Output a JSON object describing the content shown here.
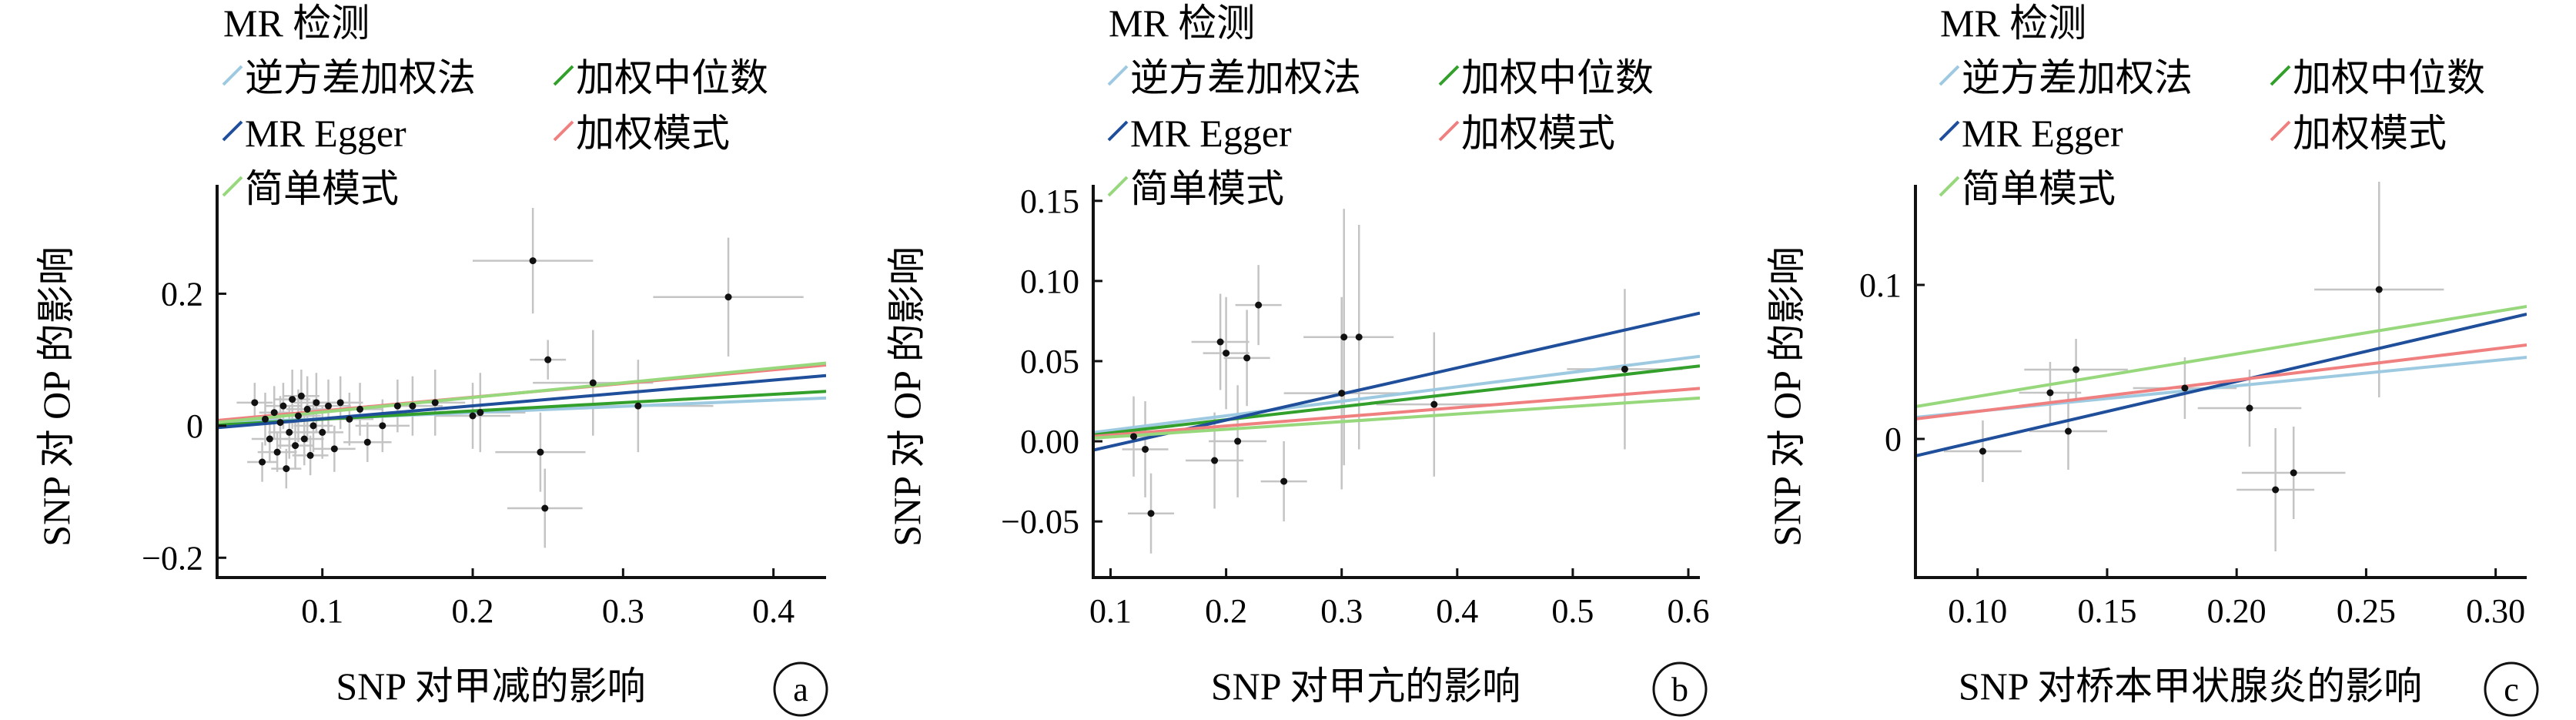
{
  "chart_data": [
    {
      "panel": "a",
      "type": "scatter",
      "xlabel": "SNP 对甲减的影响",
      "ylabel": "SNP 对 OP 的影响",
      "xlim": [
        0.03,
        0.435
      ],
      "ylim": [
        -0.23,
        0.365
      ],
      "xticks": [
        0.1,
        0.2,
        0.3,
        0.4
      ],
      "xtick_labels": [
        "0.1",
        "0.2",
        "0.3",
        "0.4"
      ],
      "yticks": [
        -0.2,
        0,
        0.2
      ],
      "ytick_labels": [
        "−0.2",
        "0",
        "0.2"
      ],
      "legend": {
        "title": "MR 检测",
        "items": [
          {
            "label": "逆方差加权法",
            "color": "#9ecae1"
          },
          {
            "label": "加权中位数",
            "color": "#33a02c"
          },
          {
            "label": "MR Egger",
            "color": "#1f4e9a"
          },
          {
            "label": "加权模式",
            "color": "#f08080"
          },
          {
            "label": "简单模式",
            "color": "#98d87d"
          }
        ]
      },
      "lines": [
        {
          "name": "逆方差加权法",
          "x": [
            0.03,
            0.435
          ],
          "y": [
            0.004,
            0.042
          ]
        },
        {
          "name": "加权中位数",
          "x": [
            0.03,
            0.435
          ],
          "y": [
            0.001,
            0.052
          ]
        },
        {
          "name": "MR Egger",
          "x": [
            0.03,
            0.435
          ],
          "y": [
            -0.003,
            0.076
          ]
        },
        {
          "name": "加权模式",
          "x": [
            0.03,
            0.435
          ],
          "y": [
            0.008,
            0.092
          ]
        },
        {
          "name": "简单模式",
          "x": [
            0.03,
            0.435
          ],
          "y": [
            0.005,
            0.095
          ]
        }
      ],
      "points": [
        {
          "x": 0.055,
          "y": 0.035,
          "xerr": 0.012,
          "yerr": 0.03
        },
        {
          "x": 0.06,
          "y": -0.055,
          "xerr": 0.01,
          "yerr": 0.03
        },
        {
          "x": 0.062,
          "y": 0.01,
          "xerr": 0.01,
          "yerr": 0.04
        },
        {
          "x": 0.065,
          "y": -0.02,
          "xerr": 0.012,
          "yerr": 0.035
        },
        {
          "x": 0.068,
          "y": 0.02,
          "xerr": 0.01,
          "yerr": 0.04
        },
        {
          "x": 0.07,
          "y": -0.04,
          "xerr": 0.013,
          "yerr": 0.03
        },
        {
          "x": 0.072,
          "y": 0.005,
          "xerr": 0.011,
          "yerr": 0.04
        },
        {
          "x": 0.074,
          "y": 0.03,
          "xerr": 0.012,
          "yerr": 0.035
        },
        {
          "x": 0.076,
          "y": -0.065,
          "xerr": 0.01,
          "yerr": 0.03
        },
        {
          "x": 0.078,
          "y": -0.01,
          "xerr": 0.014,
          "yerr": 0.04
        },
        {
          "x": 0.08,
          "y": 0.04,
          "xerr": 0.012,
          "yerr": 0.045
        },
        {
          "x": 0.082,
          "y": -0.03,
          "xerr": 0.012,
          "yerr": 0.035
        },
        {
          "x": 0.084,
          "y": 0.015,
          "xerr": 0.015,
          "yerr": 0.04
        },
        {
          "x": 0.086,
          "y": 0.045,
          "xerr": 0.012,
          "yerr": 0.04
        },
        {
          "x": 0.088,
          "y": -0.02,
          "xerr": 0.013,
          "yerr": 0.04
        },
        {
          "x": 0.09,
          "y": 0.025,
          "xerr": 0.014,
          "yerr": 0.05
        },
        {
          "x": 0.092,
          "y": -0.045,
          "xerr": 0.012,
          "yerr": 0.03
        },
        {
          "x": 0.094,
          "y": 0.0,
          "xerr": 0.013,
          "yerr": 0.04
        },
        {
          "x": 0.096,
          "y": 0.035,
          "xerr": 0.015,
          "yerr": 0.045
        },
        {
          "x": 0.1,
          "y": -0.01,
          "xerr": 0.014,
          "yerr": 0.04
        },
        {
          "x": 0.104,
          "y": 0.03,
          "xerr": 0.015,
          "yerr": 0.04
        },
        {
          "x": 0.108,
          "y": -0.035,
          "xerr": 0.014,
          "yerr": 0.035
        },
        {
          "x": 0.112,
          "y": 0.035,
          "xerr": 0.015,
          "yerr": 0.04
        },
        {
          "x": 0.118,
          "y": 0.01,
          "xerr": 0.016,
          "yerr": 0.04
        },
        {
          "x": 0.125,
          "y": 0.025,
          "xerr": 0.015,
          "yerr": 0.04
        },
        {
          "x": 0.13,
          "y": -0.025,
          "xerr": 0.016,
          "yerr": 0.03
        },
        {
          "x": 0.14,
          "y": 0.0,
          "xerr": 0.018,
          "yerr": 0.04
        },
        {
          "x": 0.15,
          "y": 0.03,
          "xerr": 0.02,
          "yerr": 0.04
        },
        {
          "x": 0.16,
          "y": 0.03,
          "xerr": 0.02,
          "yerr": 0.045
        },
        {
          "x": 0.175,
          "y": 0.035,
          "xerr": 0.02,
          "yerr": 0.05
        },
        {
          "x": 0.2,
          "y": 0.015,
          "xerr": 0.025,
          "yerr": 0.05
        },
        {
          "x": 0.205,
          "y": 0.02,
          "xerr": 0.03,
          "yerr": 0.06
        },
        {
          "x": 0.24,
          "y": 0.25,
          "xerr": 0.04,
          "yerr": 0.08
        },
        {
          "x": 0.245,
          "y": -0.04,
          "xerr": 0.03,
          "yerr": 0.06
        },
        {
          "x": 0.248,
          "y": -0.125,
          "xerr": 0.025,
          "yerr": 0.06
        },
        {
          "x": 0.25,
          "y": 0.1,
          "xerr": 0.012,
          "yerr": 0.03
        },
        {
          "x": 0.28,
          "y": 0.065,
          "xerr": 0.04,
          "yerr": 0.08
        },
        {
          "x": 0.31,
          "y": 0.03,
          "xerr": 0.05,
          "yerr": 0.07
        },
        {
          "x": 0.37,
          "y": 0.195,
          "xerr": 0.05,
          "yerr": 0.09
        }
      ]
    },
    {
      "panel": "b",
      "type": "scatter",
      "xlabel": "SNP 对甲亢的影响",
      "ylabel": "SNP 对 OP 的影响",
      "xlim": [
        0.085,
        0.61
      ],
      "ylim": [
        -0.085,
        0.16
      ],
      "xticks": [
        0.1,
        0.2,
        0.3,
        0.4,
        0.5,
        0.6
      ],
      "xtick_labels": [
        "0.1",
        "0.2",
        "0.3",
        "0.4",
        "0.5",
        "0.6"
      ],
      "yticks": [
        -0.05,
        0.0,
        0.05,
        0.1,
        0.15
      ],
      "ytick_labels": [
        "−0.05",
        "0.00",
        "0.05",
        "0.10",
        "0.15"
      ],
      "legend": {
        "title": "MR 检测",
        "items": [
          {
            "label": "逆方差加权法",
            "color": "#9ecae1"
          },
          {
            "label": "加权中位数",
            "color": "#33a02c"
          },
          {
            "label": "MR Egger",
            "color": "#1f4e9a"
          },
          {
            "label": "加权模式",
            "color": "#f08080"
          },
          {
            "label": "简单模式",
            "color": "#98d87d"
          }
        ]
      },
      "lines": [
        {
          "name": "逆方差加权法",
          "x": [
            0.085,
            0.61
          ],
          "y": [
            0.0055,
            0.053
          ]
        },
        {
          "name": "加权中位数",
          "x": [
            0.085,
            0.61
          ],
          "y": [
            0.004,
            0.047
          ]
        },
        {
          "name": "MR Egger",
          "x": [
            0.085,
            0.61
          ],
          "y": [
            -0.0055,
            0.08
          ]
        },
        {
          "name": "加权模式",
          "x": [
            0.085,
            0.61
          ],
          "y": [
            0.003,
            0.033
          ]
        },
        {
          "name": "简单模式",
          "x": [
            0.085,
            0.61
          ],
          "y": [
            0.002,
            0.027
          ]
        }
      ],
      "points": [
        {
          "x": 0.12,
          "y": 0.003,
          "xerr": 0.02,
          "yerr": 0.025
        },
        {
          "x": 0.13,
          "y": -0.005,
          "xerr": 0.02,
          "yerr": 0.03
        },
        {
          "x": 0.135,
          "y": -0.045,
          "xerr": 0.02,
          "yerr": 0.025
        },
        {
          "x": 0.19,
          "y": -0.012,
          "xerr": 0.025,
          "yerr": 0.03
        },
        {
          "x": 0.195,
          "y": 0.062,
          "xerr": 0.025,
          "yerr": 0.03
        },
        {
          "x": 0.2,
          "y": 0.055,
          "xerr": 0.02,
          "yerr": 0.035
        },
        {
          "x": 0.21,
          "y": 0.0,
          "xerr": 0.025,
          "yerr": 0.035
        },
        {
          "x": 0.218,
          "y": 0.052,
          "xerr": 0.02,
          "yerr": 0.03
        },
        {
          "x": 0.228,
          "y": 0.085,
          "xerr": 0.02,
          "yerr": 0.025
        },
        {
          "x": 0.25,
          "y": -0.025,
          "xerr": 0.02,
          "yerr": 0.025
        },
        {
          "x": 0.3,
          "y": 0.03,
          "xerr": 0.05,
          "yerr": 0.06
        },
        {
          "x": 0.302,
          "y": 0.065,
          "xerr": 0.035,
          "yerr": 0.08
        },
        {
          "x": 0.315,
          "y": 0.065,
          "xerr": 0.03,
          "yerr": 0.07
        },
        {
          "x": 0.38,
          "y": 0.023,
          "xerr": 0.05,
          "yerr": 0.045
        },
        {
          "x": 0.545,
          "y": 0.045,
          "xerr": 0.05,
          "yerr": 0.05
        }
      ]
    },
    {
      "panel": "c",
      "type": "scatter",
      "xlabel": "SNP 对桥本甲状腺炎的影响",
      "ylabel": "SNP 对 OP 的影响",
      "xlim": [
        0.076,
        0.312
      ],
      "ylim": [
        -0.09,
        0.165
      ],
      "xticks": [
        0.1,
        0.15,
        0.2,
        0.25,
        0.3
      ],
      "xtick_labels": [
        "0.10",
        "0.15",
        "0.20",
        "0.25",
        "0.30"
      ],
      "yticks": [
        0,
        0.1
      ],
      "ytick_labels": [
        "0",
        "0.1"
      ],
      "legend": {
        "title": "MR 检测",
        "items": [
          {
            "label": "逆方差加权法",
            "color": "#9ecae1"
          },
          {
            "label": "加权中位数",
            "color": "#33a02c"
          },
          {
            "label": "MR Egger",
            "color": "#1f4e9a"
          },
          {
            "label": "加权模式",
            "color": "#f08080"
          },
          {
            "label": "简单模式",
            "color": "#98d87d"
          }
        ]
      },
      "lines": [
        {
          "name": "逆方差加权法",
          "x": [
            0.076,
            0.312
          ],
          "y": [
            0.014,
            0.053
          ]
        },
        {
          "name": "MR Egger",
          "x": [
            0.076,
            0.312
          ],
          "y": [
            -0.011,
            0.081
          ]
        },
        {
          "name": "加权模式",
          "x": [
            0.076,
            0.312
          ],
          "y": [
            0.013,
            0.061
          ]
        },
        {
          "name": "简单模式",
          "x": [
            0.076,
            0.312
          ],
          "y": [
            0.021,
            0.086
          ]
        }
      ],
      "points": [
        {
          "x": 0.102,
          "y": -0.008,
          "xerr": 0.015,
          "yerr": 0.02
        },
        {
          "x": 0.128,
          "y": 0.03,
          "xerr": 0.012,
          "yerr": 0.02
        },
        {
          "x": 0.135,
          "y": 0.005,
          "xerr": 0.015,
          "yerr": 0.025
        },
        {
          "x": 0.138,
          "y": 0.045,
          "xerr": 0.02,
          "yerr": 0.02
        },
        {
          "x": 0.18,
          "y": 0.033,
          "xerr": 0.02,
          "yerr": 0.02
        },
        {
          "x": 0.205,
          "y": 0.02,
          "xerr": 0.02,
          "yerr": 0.025
        },
        {
          "x": 0.215,
          "y": -0.033,
          "xerr": 0.015,
          "yerr": 0.04
        },
        {
          "x": 0.222,
          "y": -0.022,
          "xerr": 0.02,
          "yerr": 0.03
        },
        {
          "x": 0.255,
          "y": 0.097,
          "xerr": 0.025,
          "yerr": 0.07
        }
      ]
    }
  ]
}
